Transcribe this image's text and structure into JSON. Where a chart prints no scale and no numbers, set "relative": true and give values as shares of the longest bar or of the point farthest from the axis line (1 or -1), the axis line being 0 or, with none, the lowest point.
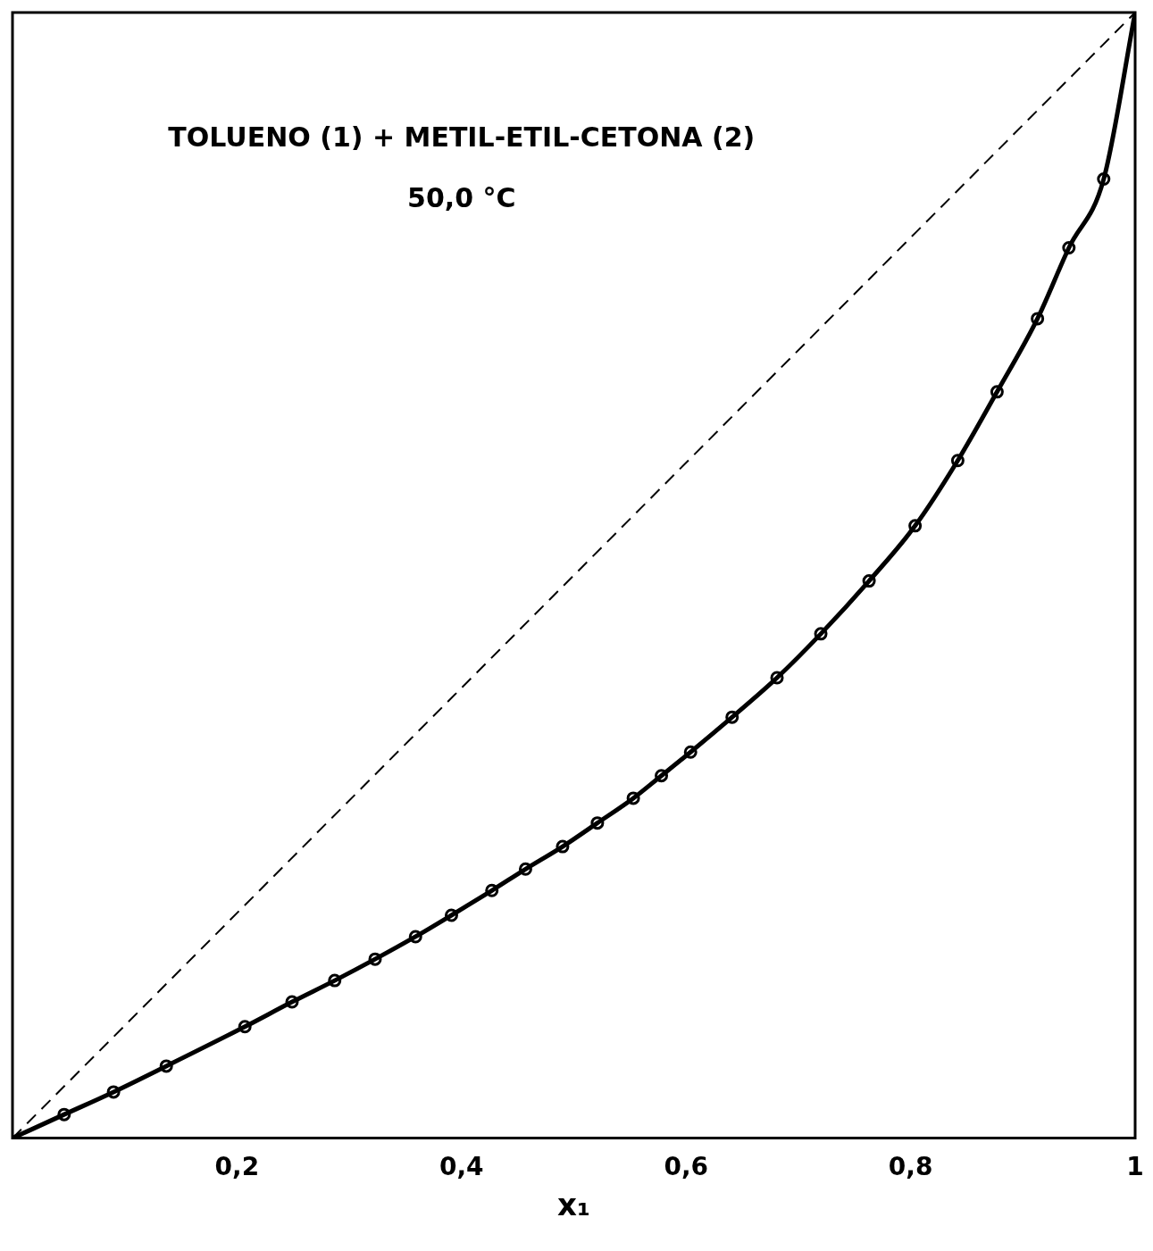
{
  "chart_data": {
    "type": "line",
    "relative": true,
    "xlabel": "x₁",
    "annotations": [
      "TOLUENO (1) + METIL-ETIL-CETONA (2)",
      "50,0 °C"
    ],
    "xlim": [
      0,
      1
    ],
    "xticks": [
      {
        "value": 0.2,
        "label": "0,2"
      },
      {
        "value": 0.4,
        "label": "0,4"
      },
      {
        "value": 0.6,
        "label": "0,6"
      },
      {
        "value": 0.8,
        "label": "0,8"
      },
      {
        "value": 1,
        "label": "1"
      }
    ],
    "tick_labels": "x",
    "grid": false,
    "legend": false,
    "series": [
      {
        "color": "#000000",
        "marker": "none",
        "line_style": "dashed",
        "x": [
          0,
          1
        ],
        "values": [
          0,
          1
        ]
      },
      {
        "color": "#000000",
        "marker": "none",
        "line_style": "solid",
        "x": [
          0,
          0.046,
          0.09,
          0.137,
          0.207,
          0.249,
          0.287,
          0.323,
          0.359,
          0.391,
          0.427,
          0.457,
          0.49,
          0.521,
          0.553,
          0.578,
          0.604,
          0.641,
          0.681,
          0.72,
          0.763,
          0.804,
          0.842,
          0.877,
          0.913,
          0.941,
          0.972,
          1
        ],
        "values": [
          0,
          0.021,
          0.041,
          0.064,
          0.099,
          0.121,
          0.14,
          0.159,
          0.179,
          0.198,
          0.22,
          0.239,
          0.259,
          0.28,
          0.302,
          0.322,
          0.343,
          0.374,
          0.409,
          0.448,
          0.495,
          0.544,
          0.602,
          0.663,
          0.728,
          0.791,
          0.852,
          1
        ]
      },
      {
        "type": "scatter",
        "color": "#000000",
        "marker": "circle",
        "x": [
          0.046,
          0.09,
          0.137,
          0.207,
          0.249,
          0.287,
          0.323,
          0.359,
          0.391,
          0.427,
          0.457,
          0.49,
          0.521,
          0.553,
          0.578,
          0.604,
          0.641,
          0.681,
          0.72,
          0.763,
          0.804,
          0.842,
          0.877,
          0.913,
          0.941,
          0.972
        ],
        "values": [
          0.021,
          0.041,
          0.064,
          0.099,
          0.121,
          0.14,
          0.159,
          0.179,
          0.198,
          0.22,
          0.239,
          0.259,
          0.28,
          0.302,
          0.322,
          0.343,
          0.374,
          0.409,
          0.448,
          0.495,
          0.544,
          0.602,
          0.663,
          0.728,
          0.791,
          0.852
        ]
      }
    ]
  }
}
